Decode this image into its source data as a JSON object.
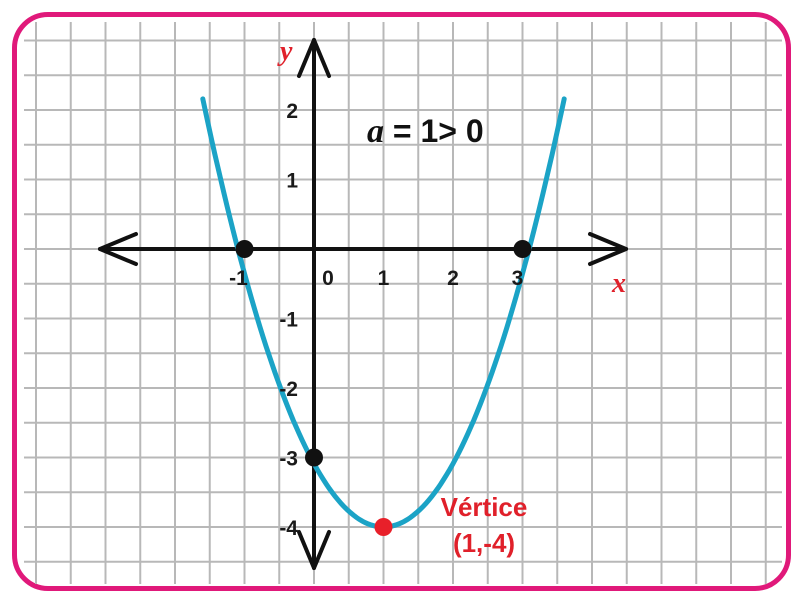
{
  "colors": {
    "frame": "#e0197a",
    "grid": "#b8b8b8",
    "axis": "#111111",
    "curve": "#1ba3c6",
    "point": "#111111",
    "vertex": "#e8202a",
    "axis_label": "#e0202a"
  },
  "chart_data": {
    "type": "line",
    "function": "y = x^2 - 2x - 3",
    "xlabel": "x",
    "ylabel": "y",
    "x_ticks": [
      "-1",
      "0",
      "1",
      "2",
      "3"
    ],
    "y_ticks": [
      "2",
      "1",
      "-1",
      "-2",
      "-3",
      "-4"
    ],
    "series": [
      {
        "x": [
          -1.6,
          -1.2,
          -0.8,
          -0.4,
          0,
          0.4,
          0.8,
          1,
          1.2,
          1.6,
          2,
          2.4,
          2.8,
          3.2,
          3.6
        ],
        "y": [
          2.16,
          0.84,
          -0.76,
          -2.04,
          -3,
          -3.64,
          -3.96,
          -4,
          -3.96,
          -3.64,
          -3,
          -2.04,
          -0.76,
          0.84,
          2.16
        ]
      }
    ],
    "points": [
      {
        "x": -1,
        "y": 0,
        "kind": "root"
      },
      {
        "x": 3,
        "y": 0,
        "kind": "root"
      },
      {
        "x": 0,
        "y": -3,
        "kind": "intercept"
      },
      {
        "x": 1,
        "y": -4,
        "kind": "vertex"
      }
    ],
    "annotations": {
      "coefficient_symbol": "a",
      "coefficient_text": " = 1> 0",
      "vertex_title": "Vértice",
      "vertex_coords": "(1,-4)"
    },
    "grid": true
  }
}
